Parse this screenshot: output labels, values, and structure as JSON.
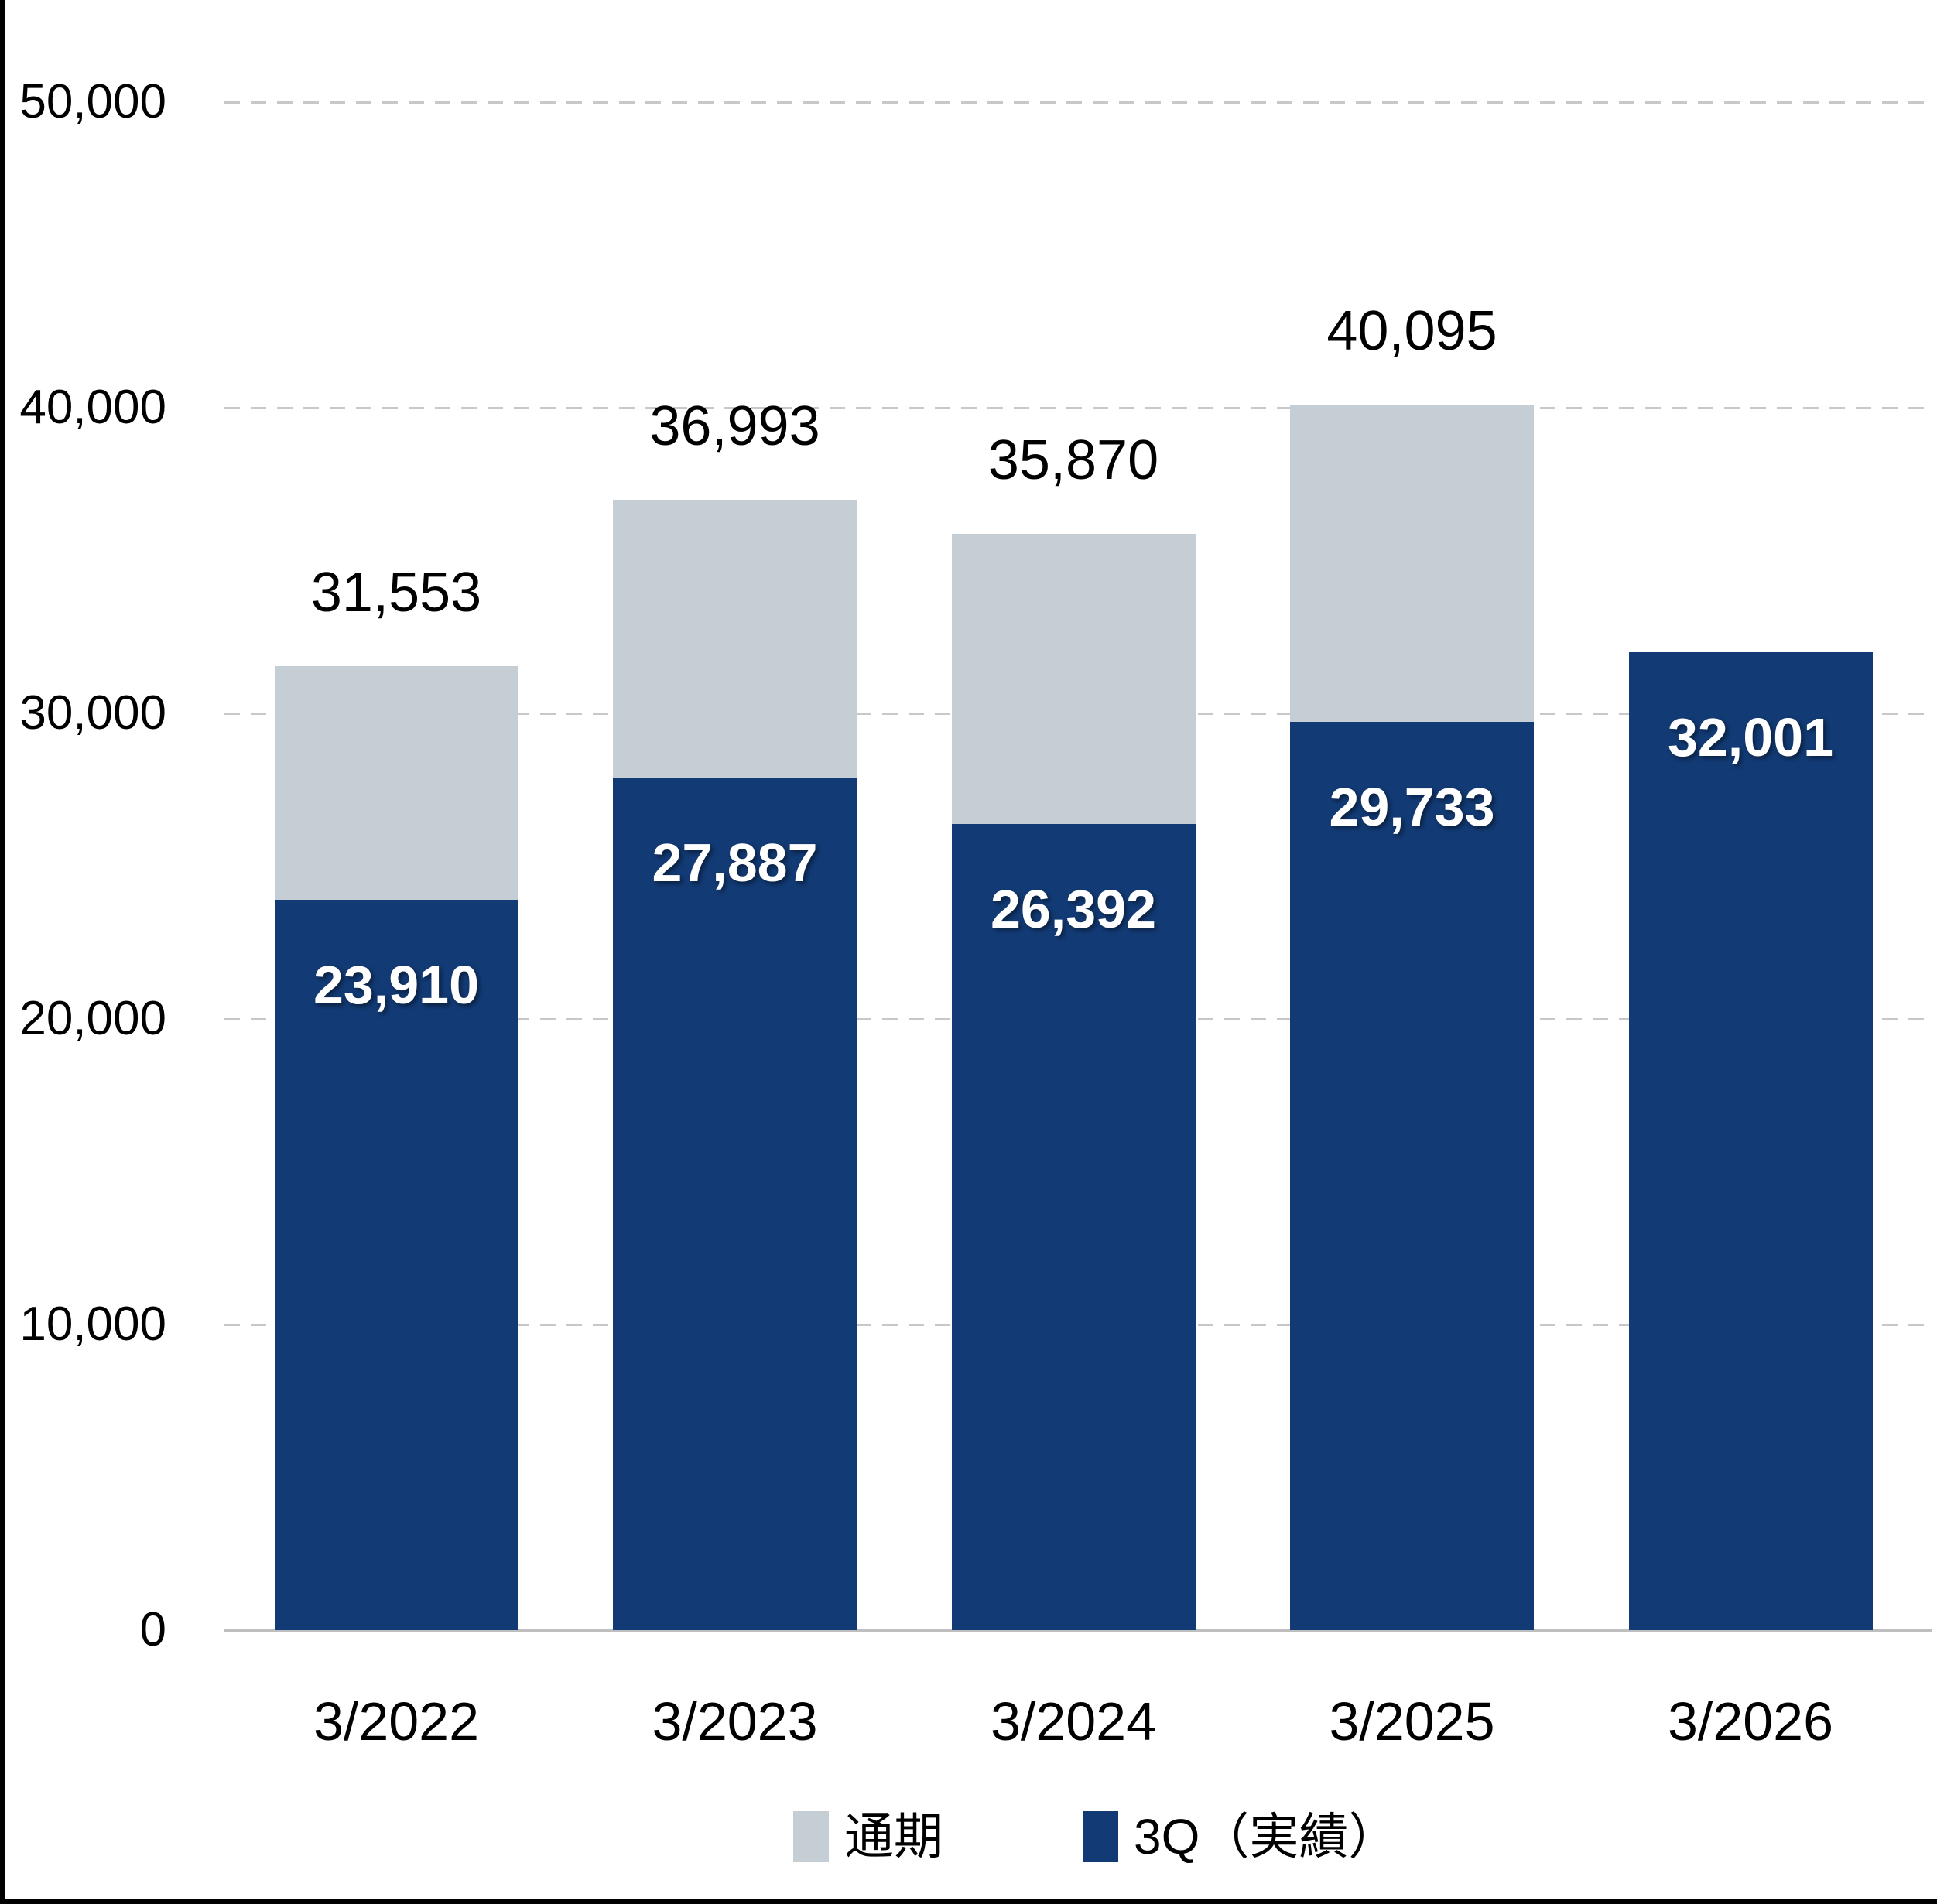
{
  "chart_data": {
    "type": "bar",
    "subtype": "overlapped-stack",
    "title": "",
    "xlabel": "",
    "ylabel": "",
    "categories": [
      "3/2022",
      "3/2023",
      "3/2024",
      "3/2025",
      "3/2026"
    ],
    "series": [
      {
        "name": "通期",
        "role": "full-year-total",
        "color": "#C5CED5",
        "values": [
          31553,
          36993,
          35870,
          40095,
          null
        ]
      },
      {
        "name": "3Q（実績）",
        "role": "third-quarter-actual",
        "color": "#123A74",
        "values": [
          23910,
          27887,
          26392,
          29733,
          32001
        ]
      }
    ],
    "labels_above_bars": [
      31553,
      36993,
      35870,
      40095,
      null
    ],
    "labels_inside_bars": [
      23910,
      27887,
      26392,
      29733,
      32001
    ],
    "ylim": [
      0,
      50000
    ],
    "yticks": [
      0,
      10000,
      20000,
      30000,
      40000,
      50000
    ],
    "grid": "horizontal-dashed",
    "legend_position": "bottom-center"
  },
  "colors": {
    "bar_navy": "#123A74",
    "bar_gray": "#C5CED5",
    "gridline": "#C8C8C8",
    "axis_line": "#BFBFBF",
    "tick_text": "#000000",
    "inside_label_text": "#FFFFFF",
    "frame_border": "#000000",
    "background": "#FFFFFF"
  }
}
